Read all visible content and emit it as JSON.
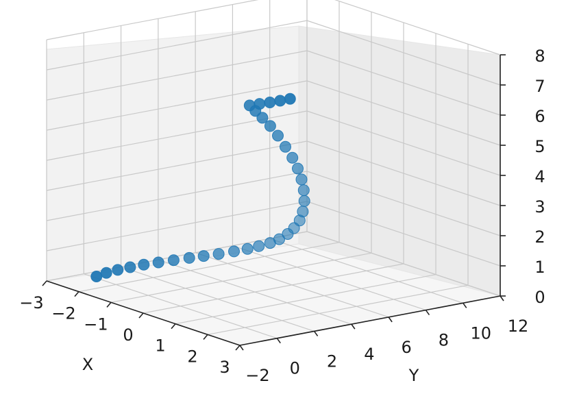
{
  "chart_data": {
    "type": "scatter3d",
    "title": "",
    "xlabel": "X",
    "ylabel": "Y",
    "zlabel": "",
    "xlim": [
      -3,
      3
    ],
    "ylim": [
      -2,
      12
    ],
    "zlim": [
      0,
      8
    ],
    "grid": true,
    "xticks": [
      "−3",
      "−2",
      "−1",
      "0",
      "1",
      "2",
      "3"
    ],
    "yticks": [
      "−2",
      "0",
      "2",
      "4",
      "6",
      "8",
      "10",
      "12"
    ],
    "zticks": [
      "0",
      "1",
      "2",
      "3",
      "4",
      "5",
      "6",
      "7",
      "8"
    ],
    "xtick_values": [
      -3,
      -2,
      -1,
      0,
      1,
      2,
      3
    ],
    "ytick_values": [
      -2,
      0,
      2,
      4,
      6,
      8,
      10,
      12
    ],
    "ztick_values": [
      0,
      1,
      2,
      3,
      4,
      5,
      6,
      7,
      8
    ],
    "marker_color": "#1f77b4",
    "series": [
      {
        "points": [
          [
            -1.45,
            -2.0,
            0.7
          ],
          [
            -1.55,
            -1.3,
            0.7
          ],
          [
            -1.6,
            -0.6,
            0.7
          ],
          [
            -1.62,
            0.1,
            0.7
          ],
          [
            -1.6,
            0.8,
            0.71
          ],
          [
            -1.55,
            1.5,
            0.72
          ],
          [
            -1.48,
            2.2,
            0.74
          ],
          [
            -1.4,
            2.9,
            0.76
          ],
          [
            -1.3,
            3.5,
            0.79
          ],
          [
            -1.18,
            4.1,
            0.83
          ],
          [
            -1.05,
            4.7,
            0.89
          ],
          [
            -0.92,
            5.2,
            0.96
          ],
          [
            -0.8,
            5.6,
            1.05
          ],
          [
            -0.68,
            6.0,
            1.15
          ],
          [
            -0.57,
            6.3,
            1.28
          ],
          [
            -0.48,
            6.6,
            1.45
          ],
          [
            -0.4,
            6.8,
            1.65
          ],
          [
            -0.34,
            7.0,
            1.9
          ],
          [
            -0.3,
            7.1,
            2.2
          ],
          [
            -0.28,
            7.15,
            2.55
          ],
          [
            -0.3,
            7.15,
            2.9
          ],
          [
            -0.34,
            7.1,
            3.25
          ],
          [
            -0.4,
            7.0,
            3.6
          ],
          [
            -0.48,
            6.85,
            3.95
          ],
          [
            -0.58,
            6.65,
            4.3
          ],
          [
            -0.7,
            6.45,
            4.65
          ],
          [
            -0.82,
            6.25,
            4.95
          ],
          [
            -0.95,
            6.05,
            5.2
          ],
          [
            -1.08,
            5.9,
            5.4
          ],
          [
            -1.2,
            5.8,
            5.55
          ],
          [
            -1.18,
            6.3,
            5.55
          ],
          [
            -1.15,
            6.8,
            5.55
          ],
          [
            -1.12,
            7.3,
            5.56
          ],
          [
            -1.1,
            7.8,
            5.57
          ]
        ]
      }
    ]
  }
}
